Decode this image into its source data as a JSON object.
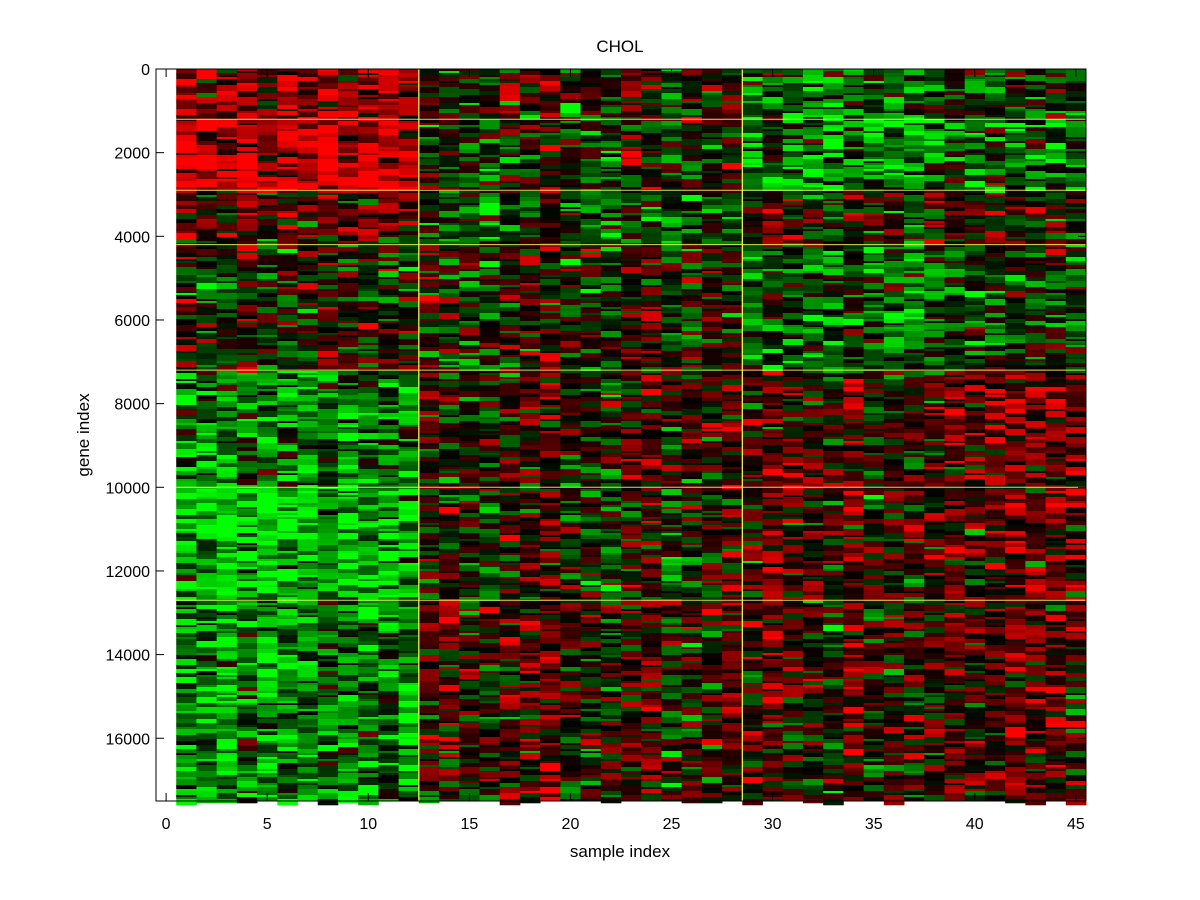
{
  "chart_data": {
    "type": "heatmap",
    "title": "CHOL",
    "xlabel": "sample index",
    "ylabel": "gene index",
    "xlim": [
      -0.5,
      45.5
    ],
    "ylim": [
      0,
      17500
    ],
    "y_reversed": true,
    "x_ticks": [
      0,
      5,
      10,
      15,
      20,
      25,
      30,
      35,
      40,
      45
    ],
    "y_ticks": [
      0,
      2000,
      4000,
      6000,
      8000,
      10000,
      12000,
      14000,
      16000
    ],
    "n_samples": 45,
    "n_genes": 17500,
    "colormap": {
      "low": "#00ff00",
      "mid": "#000000",
      "high": "#ff0000"
    },
    "separator_color": "#ffff66",
    "vertical_separators": [
      12.5,
      28.5
    ],
    "horizontal_separators": [
      1200,
      2900,
      4200,
      7200,
      10000,
      12700
    ],
    "sample_groups": [
      {
        "samples": [
          1,
          12
        ]
      },
      {
        "samples": [
          13,
          28
        ]
      },
      {
        "samples": [
          29,
          45
        ]
      }
    ],
    "mean_expression_blocks": [
      {
        "genes": [
          0,
          1200
        ],
        "group_means": [
          0.55,
          0.05,
          -0.35
        ]
      },
      {
        "genes": [
          1200,
          2900
        ],
        "group_means": [
          0.75,
          -0.05,
          -0.4
        ]
      },
      {
        "genes": [
          2900,
          4200
        ],
        "group_means": [
          0.35,
          -0.25,
          0.05
        ]
      },
      {
        "genes": [
          4200,
          7200
        ],
        "group_means": [
          0.0,
          0.05,
          -0.3
        ]
      },
      {
        "genes": [
          7200,
          10000
        ],
        "group_means": [
          -0.45,
          0.1,
          0.2
        ]
      },
      {
        "genes": [
          10000,
          12700
        ],
        "group_means": [
          -0.7,
          0.0,
          0.25
        ]
      },
      {
        "genes": [
          12700,
          17500
        ],
        "group_means": [
          -0.5,
          0.15,
          0.15
        ]
      }
    ]
  }
}
